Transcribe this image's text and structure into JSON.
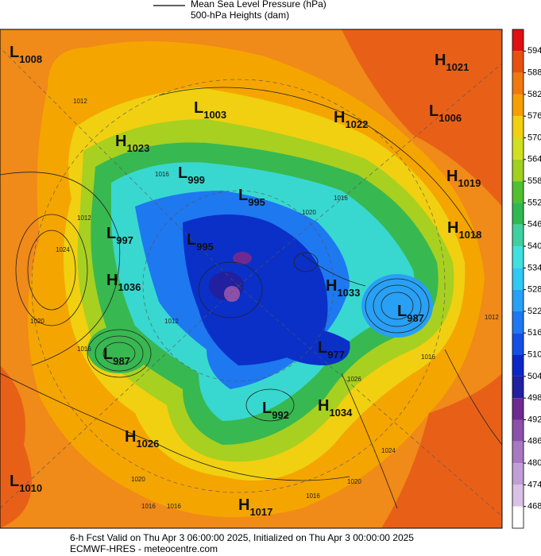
{
  "legend": [
    "Mean Sea Level Pressure (hPa)",
    "500-hPa Heights (dam)"
  ],
  "pressure_centers": [
    {
      "kind": "L",
      "value": 1008
    },
    {
      "kind": "H",
      "value": 1021
    },
    {
      "kind": "L",
      "value": 1003
    },
    {
      "kind": "H",
      "value": 1022
    },
    {
      "kind": "L",
      "value": 1006
    },
    {
      "kind": "H",
      "value": 1023
    },
    {
      "kind": "L",
      "value": 999
    },
    {
      "kind": "H",
      "value": 1019
    },
    {
      "kind": "L",
      "value": 995
    },
    {
      "kind": "L",
      "value": 997
    },
    {
      "kind": "H",
      "value": 1018
    },
    {
      "kind": "L",
      "value": 995
    },
    {
      "kind": "H",
      "value": 1036
    },
    {
      "kind": "H",
      "value": 1033
    },
    {
      "kind": "L",
      "value": 987
    },
    {
      "kind": "L",
      "value": 987
    },
    {
      "kind": "L",
      "value": 977
    },
    {
      "kind": "L",
      "value": 992
    },
    {
      "kind": "H",
      "value": 1034
    },
    {
      "kind": "H",
      "value": 1026
    },
    {
      "kind": "L",
      "value": 1010
    },
    {
      "kind": "H",
      "value": 1017
    }
  ],
  "contour_labels": [
    1012,
    1016,
    1012,
    1024,
    1020,
    1016,
    1012,
    1016,
    1026,
    1024,
    1020,
    1016,
    1020,
    1016,
    1016,
    1012,
    1016,
    1020
  ],
  "colorbar": {
    "ticks": [
      594,
      588,
      582,
      576,
      570,
      564,
      558,
      552,
      546,
      540,
      534,
      528,
      522,
      516,
      510,
      504,
      498,
      492,
      486,
      480,
      474,
      468
    ],
    "colors": [
      "#e01010",
      "#e85010",
      "#f07810",
      "#f5a000",
      "#f0d010",
      "#d0e020",
      "#a0d020",
      "#50c030",
      "#30b850",
      "#40d0a0",
      "#40e0e0",
      "#30c8f5",
      "#28a0f5",
      "#1e78f0",
      "#1450e6",
      "#0a28c8",
      "#2020a0",
      "#6e2a90",
      "#8c50aa",
      "#a878c2",
      "#c29ed6",
      "#d9c2e6",
      "#ffffff"
    ]
  },
  "footer": [
    "6-h Fcst Valid on Thu Apr  3 06:00:00 2025, Initialized on Thu Apr  3 00:00:00 2025",
    "ECMWF-HRES  - meteocentre.com"
  ]
}
